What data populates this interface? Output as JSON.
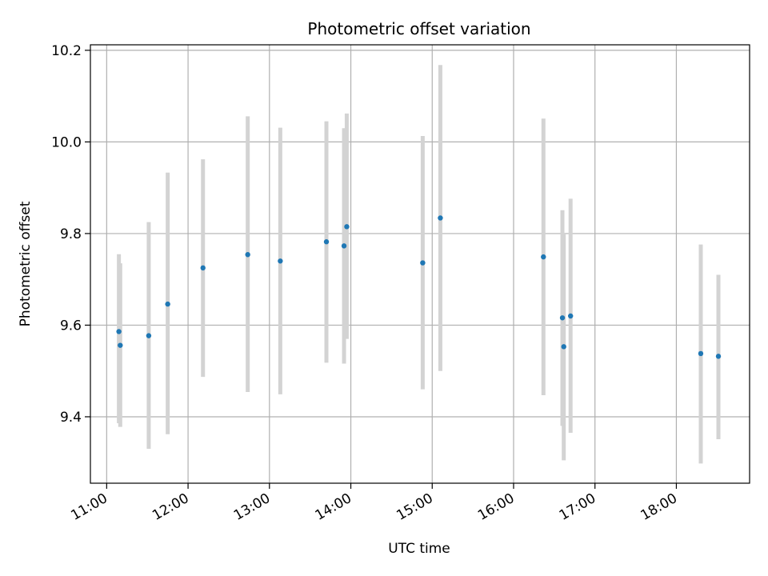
{
  "chart_data": {
    "type": "scatter",
    "title": "Photometric offset variation",
    "xlabel": "UTC time",
    "ylabel": "Photometric offset",
    "x_ticks": [
      "11:00",
      "12:00",
      "13:00",
      "14:00",
      "15:00",
      "16:00",
      "17:00",
      "18:00"
    ],
    "y_ticks": [
      "9.4",
      "9.6",
      "9.8",
      "10.0",
      "10.2"
    ],
    "xlim": [
      "10:48",
      "18:54"
    ],
    "ylim": [
      9.255,
      10.212
    ],
    "grid": true,
    "colors": {
      "point": "#1f77b4",
      "errorbar": "#d3d3d3",
      "grid": "#b0b0b0"
    },
    "points": [
      {
        "x": "11:09",
        "y": 9.586,
        "ylow": 9.386,
        "yhigh": 9.755
      },
      {
        "x": "11:10",
        "y": 9.556,
        "ylow": 9.378,
        "yhigh": 9.735
      },
      {
        "x": "11:31",
        "y": 9.577,
        "ylow": 9.33,
        "yhigh": 9.825
      },
      {
        "x": "11:45",
        "y": 9.646,
        "ylow": 9.362,
        "yhigh": 9.933
      },
      {
        "x": "12:11",
        "y": 9.725,
        "ylow": 9.487,
        "yhigh": 9.962
      },
      {
        "x": "12:44",
        "y": 9.754,
        "ylow": 9.454,
        "yhigh": 10.056
      },
      {
        "x": "13:08",
        "y": 9.74,
        "ylow": 9.449,
        "yhigh": 10.031
      },
      {
        "x": "13:42",
        "y": 9.782,
        "ylow": 9.518,
        "yhigh": 10.045
      },
      {
        "x": "13:55",
        "y": 9.773,
        "ylow": 9.516,
        "yhigh": 10.03
      },
      {
        "x": "13:57",
        "y": 9.815,
        "ylow": 9.57,
        "yhigh": 10.062
      },
      {
        "x": "14:53",
        "y": 9.736,
        "ylow": 9.46,
        "yhigh": 10.013
      },
      {
        "x": "15:06",
        "y": 9.834,
        "ylow": 9.5,
        "yhigh": 10.168
      },
      {
        "x": "16:22",
        "y": 9.749,
        "ylow": 9.447,
        "yhigh": 10.051
      },
      {
        "x": "16:36",
        "y": 9.616,
        "ylow": 9.38,
        "yhigh": 9.851
      },
      {
        "x": "16:37",
        "y": 9.553,
        "ylow": 9.305,
        "yhigh": 9.8
      },
      {
        "x": "16:42",
        "y": 9.62,
        "ylow": 9.365,
        "yhigh": 9.876
      },
      {
        "x": "18:18",
        "y": 9.538,
        "ylow": 9.298,
        "yhigh": 9.776
      },
      {
        "x": "18:31",
        "y": 9.532,
        "ylow": 9.351,
        "yhigh": 9.71
      }
    ]
  }
}
